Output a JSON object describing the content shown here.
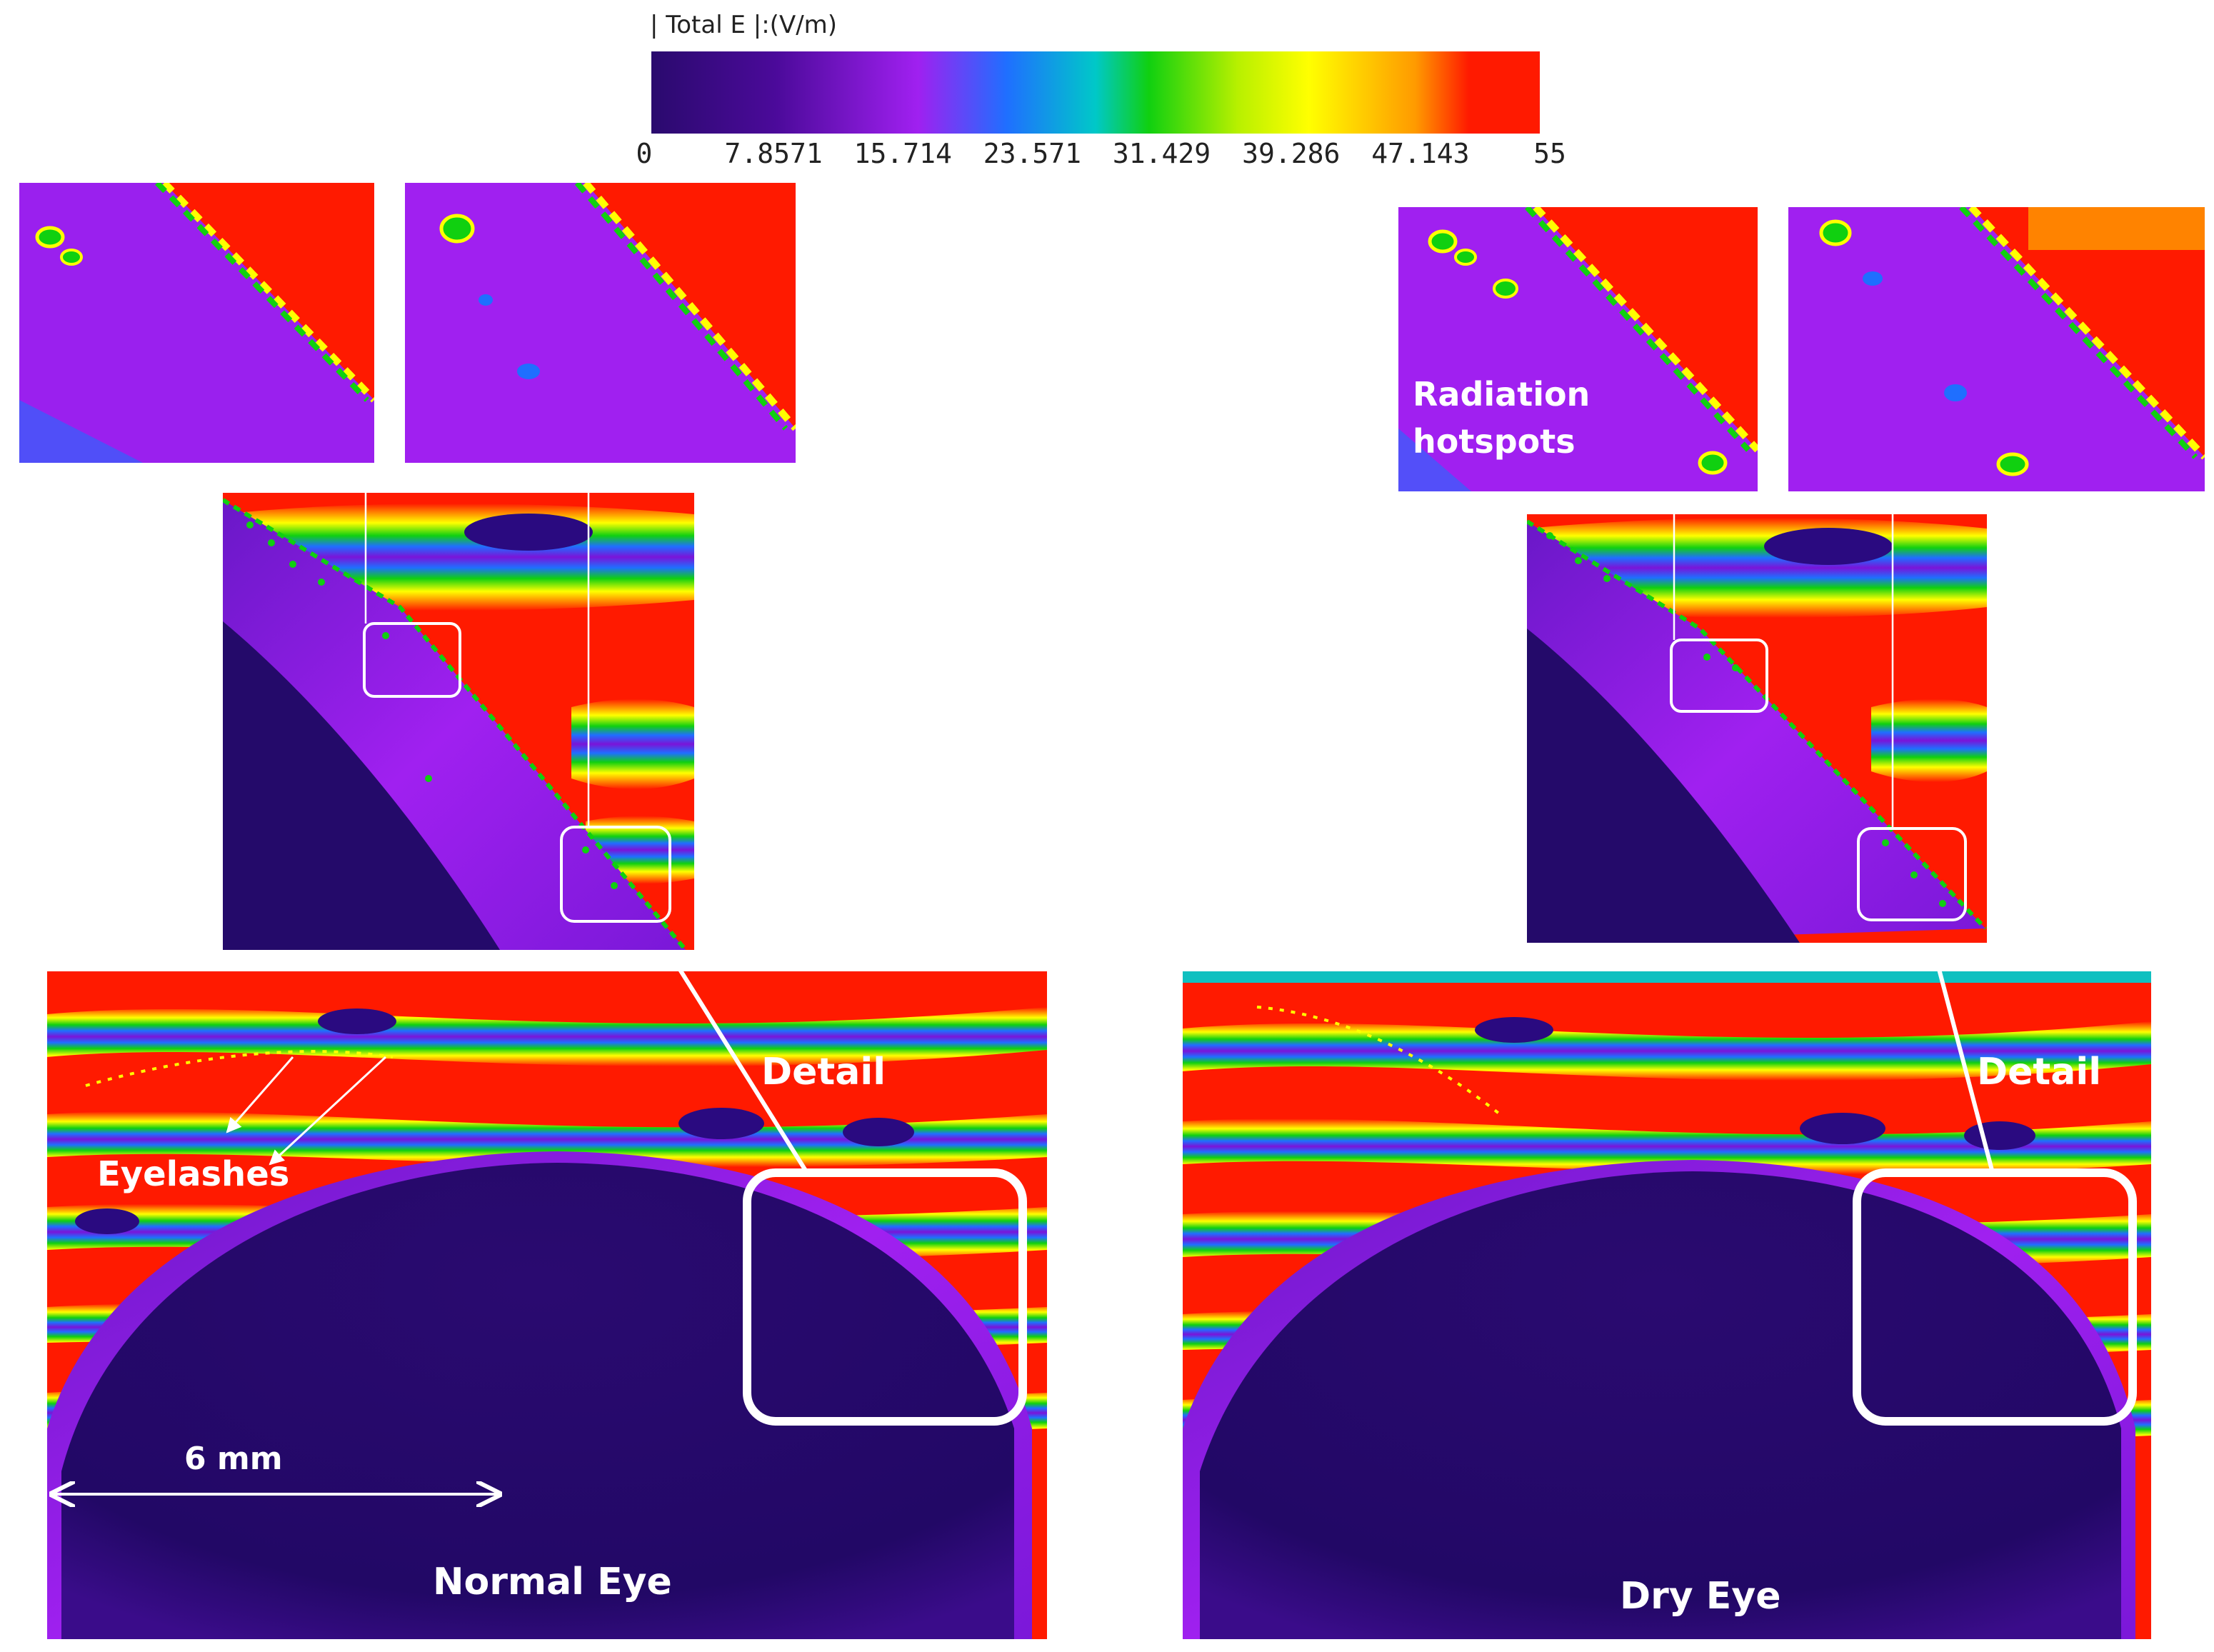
{
  "colorbar": {
    "title": "| Total E |:(V/m)",
    "ticks": [
      "0",
      "7.8571",
      "15.714",
      "23.571",
      "31.429",
      "39.286",
      "47.143",
      "55"
    ],
    "colors": [
      "#2a0a6e",
      "#4b0a9a",
      "#a020f0",
      "#1f6fff",
      "#00c8c8",
      "#10d010",
      "#b8f000",
      "#ffff00",
      "#ff9a00",
      "#ff1a00"
    ]
  },
  "panels": {
    "normal": {
      "title": "Normal Eye",
      "detail_label": "Detail",
      "eyelashes_label": "Eyelashes",
      "scale_label": "6 mm"
    },
    "dry": {
      "title": "Dry Eye",
      "detail_label": "Detail",
      "hotspot_label_line1": "Radiation",
      "hotspot_label_line2": "hotspots"
    }
  },
  "palette": {
    "field_high": "#ff1a00",
    "field_low": "#240a6a",
    "tissue": "#8a1fe0",
    "annotation": "#ffffff"
  }
}
